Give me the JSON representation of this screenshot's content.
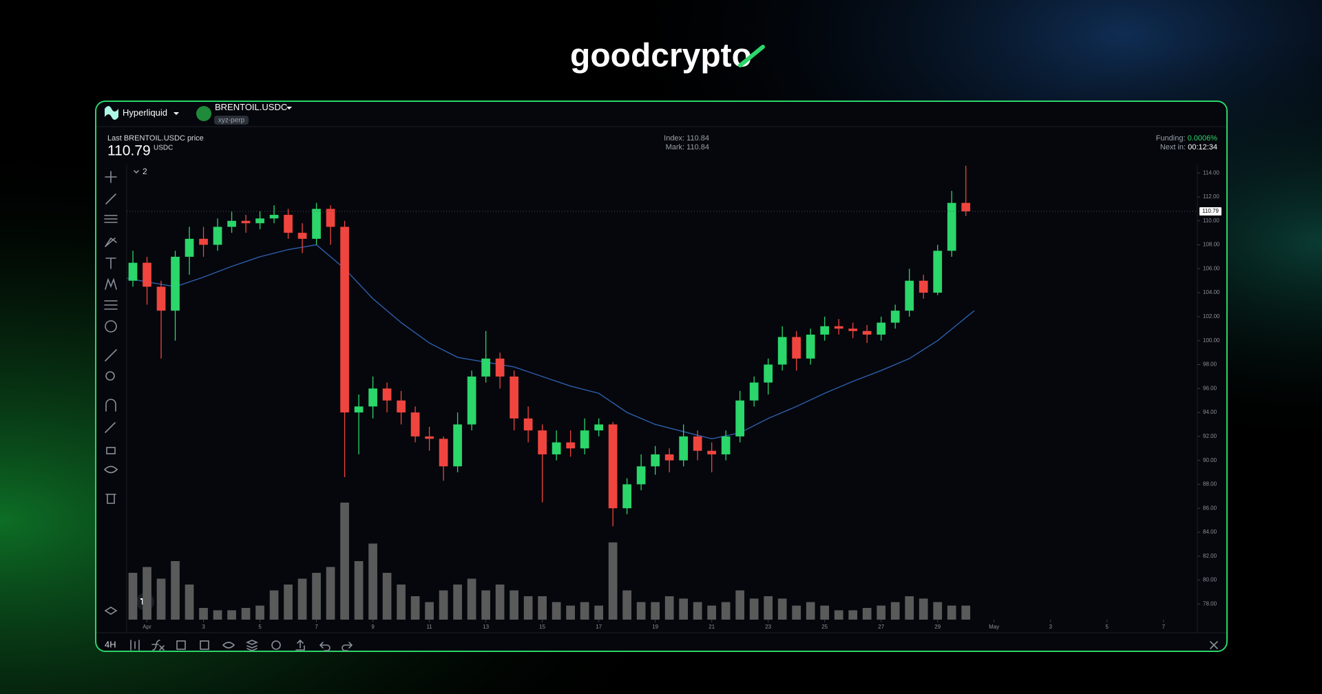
{
  "logo": "goodcrypto",
  "exchange": "Hyperliquid",
  "symbol": "BRENTOIL.USDC",
  "market_type": "xyz-perp",
  "price_label": "Last BRENTOIL.USDC price",
  "quote": "USDC",
  "index_label": "Index:",
  "index": 110.84,
  "mark_label": "Mark:",
  "mark": 110.84,
  "funding_label": "Funding:",
  "funding": "0.0006%",
  "next_label": "Next in:",
  "next_in": "00:12:34",
  "interval": "4H",
  "indicator_count": 2,
  "chart_data": {
    "type": "candlestick",
    "up_color": "#2bd66a",
    "down_color": "#f0453f",
    "volume_color": "#5a5a5a",
    "last_price": 110.79,
    "xlim": [
      0.28,
      38.2
    ],
    "ylim": [
      76.7,
      114.7
    ],
    "volume_lim": [
      0,
      100
    ],
    "grid": false,
    "xticks": [
      {
        "value": 1,
        "label": "Apr"
      },
      3,
      5,
      7,
      9,
      11,
      13,
      15,
      17,
      19,
      21,
      23,
      25,
      27,
      29,
      {
        "value": 31,
        "label": "May"
      },
      {
        "value": 33,
        "label": "3"
      },
      {
        "value": 35,
        "label": "5"
      },
      {
        "value": 37,
        "label": "7"
      }
    ],
    "yticks": [
      {
        "value": 78,
        "label": "78.00"
      },
      {
        "value": 80,
        "label": "80.00"
      },
      {
        "value": 82,
        "label": "82.00"
      },
      {
        "value": 84,
        "label": "84.00"
      },
      {
        "value": 86,
        "label": "86.00"
      },
      {
        "value": 88,
        "label": "88.00"
      },
      {
        "value": 90,
        "label": "90.00"
      },
      {
        "value": 92,
        "label": "92.00"
      },
      {
        "value": 94,
        "label": "94.00"
      },
      {
        "value": 96,
        "label": "96.00"
      },
      {
        "value": 98,
        "label": "98.00"
      },
      {
        "value": 100,
        "label": "100.00"
      },
      {
        "value": 102,
        "label": "102.00"
      },
      {
        "value": 104,
        "label": "104.00"
      },
      {
        "value": 106,
        "label": "106.00"
      },
      {
        "value": 108,
        "label": "108.00"
      },
      {
        "value": 110,
        "label": "110.00"
      },
      {
        "value": 112,
        "label": "112.00"
      },
      {
        "value": 114,
        "label": "114.00"
      }
    ],
    "x": [
      0.5,
      1,
      1.5,
      2,
      2.5,
      3,
      3.5,
      4,
      4.5,
      5,
      5.5,
      6,
      6.5,
      7,
      7.5,
      8,
      8.5,
      9,
      9.5,
      10,
      10.5,
      11,
      11.5,
      12,
      12.5,
      13,
      13.5,
      14,
      14.5,
      15,
      15.5,
      16,
      16.5,
      17,
      17.5,
      18,
      18.5,
      19,
      19.5,
      20,
      20.5,
      21,
      21.5,
      22,
      22.5,
      23,
      23.5,
      24,
      24.5,
      25,
      25.5,
      26,
      26.5,
      27,
      27.5,
      28,
      28.5,
      29,
      29.5,
      30
    ],
    "open": [
      105,
      106.5,
      104.5,
      102.5,
      107,
      108.5,
      108,
      109.5,
      110,
      109.8,
      110.2,
      110.5,
      109,
      108.5,
      111,
      109.5,
      94,
      94.5,
      96,
      95,
      94,
      92,
      91.8,
      89.5,
      93,
      97,
      98.5,
      97,
      93.5,
      92.5,
      90.5,
      91.5,
      91,
      92.5,
      93,
      86,
      88,
      89.5,
      90.5,
      90,
      92,
      90.8,
      90.5,
      92,
      95,
      96.5,
      98,
      100.3,
      98.5,
      100.5,
      101.2,
      101,
      100.8,
      100.5,
      101.5,
      102.5,
      105,
      104,
      107.5,
      111.5
    ],
    "high": [
      107.5,
      107,
      105,
      107.5,
      109.5,
      109.5,
      110.2,
      110.8,
      110.5,
      110.8,
      111.3,
      111,
      109.8,
      111.5,
      111.3,
      110,
      95.5,
      97,
      96.5,
      95.8,
      94.5,
      92.8,
      92,
      94,
      97.5,
      100.8,
      99,
      97.5,
      94.5,
      93,
      92.5,
      92.5,
      93.5,
      93.5,
      93.2,
      88.5,
      90.5,
      91.2,
      91,
      93,
      92.5,
      91.5,
      92.5,
      95.8,
      97,
      98.5,
      101.2,
      100.8,
      101,
      102,
      101.8,
      101.5,
      101.3,
      102,
      103,
      106,
      105.5,
      108,
      112.5,
      114.6
    ],
    "low": [
      104.5,
      103,
      98.5,
      100,
      105.5,
      107,
      107.5,
      109,
      109,
      109.3,
      109.8,
      108.5,
      107.3,
      108,
      108,
      88.6,
      90.5,
      93.5,
      94,
      93,
      91.5,
      90.8,
      88.3,
      89,
      92.5,
      96.5,
      96,
      92.5,
      91.5,
      86.5,
      90,
      90.3,
      90.5,
      92,
      84.5,
      85.5,
      87.5,
      88.8,
      89,
      89.5,
      90,
      89,
      90,
      91.5,
      94.5,
      95.5,
      97.5,
      97.5,
      98,
      100,
      100.5,
      100.2,
      99.8,
      100,
      101,
      102,
      103.5,
      103.8,
      107,
      110.4
    ],
    "close": [
      106.5,
      104.5,
      102.5,
      107,
      108.5,
      108,
      109.5,
      110,
      109.8,
      110.2,
      110.5,
      109,
      108.5,
      111,
      109.5,
      94,
      94.5,
      96,
      95,
      94,
      92,
      91.8,
      89.5,
      93,
      97,
      98.5,
      97,
      93.5,
      92.5,
      90.5,
      91.5,
      91,
      92.5,
      93,
      86,
      88,
      89.5,
      90.5,
      90,
      92,
      90.8,
      90.5,
      92,
      95,
      96.5,
      98,
      100.3,
      98.5,
      100.5,
      101.2,
      101,
      100.8,
      100.5,
      101.5,
      102.5,
      105,
      104,
      107.5,
      111.5,
      110.79
    ],
    "volume": [
      40,
      45,
      35,
      50,
      30,
      10,
      8,
      8,
      10,
      12,
      25,
      30,
      35,
      40,
      45,
      100,
      50,
      65,
      40,
      30,
      20,
      15,
      25,
      30,
      35,
      25,
      30,
      25,
      20,
      20,
      15,
      12,
      15,
      12,
      66,
      25,
      15,
      15,
      20,
      18,
      15,
      12,
      15,
      25,
      18,
      20,
      18,
      12,
      15,
      12,
      8,
      8,
      10,
      12,
      15,
      20,
      18,
      15,
      12,
      12
    ],
    "ma": {
      "color": "#2e5fae",
      "x": [
        0.3,
        1,
        2,
        3,
        4,
        5,
        6,
        7,
        8,
        9,
        10,
        11,
        12,
        13,
        14,
        15,
        16,
        17,
        18,
        19,
        20,
        21,
        22,
        23,
        24,
        25,
        26,
        27,
        28,
        29,
        30.3
      ],
      "values": [
        105.2,
        104.9,
        104.5,
        105.3,
        106.2,
        107,
        107.6,
        108,
        106,
        103.5,
        101.5,
        99.8,
        98.6,
        98.2,
        97.8,
        97,
        96.2,
        95.6,
        94,
        93,
        92.4,
        91.8,
        92.3,
        93.5,
        94.5,
        95.6,
        96.6,
        97.5,
        98.5,
        100,
        102.5
      ]
    }
  }
}
